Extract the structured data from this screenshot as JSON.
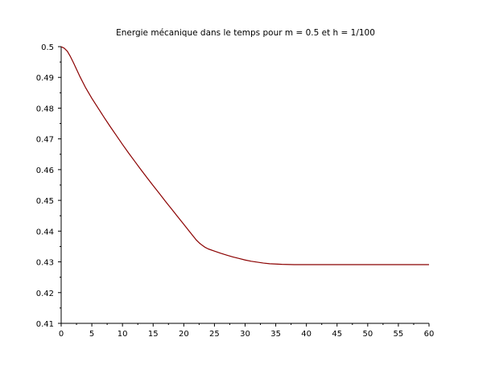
{
  "chart_data": {
    "type": "line",
    "title": "Energie mécanique dans le temps pour m = 0.5 et h = 1/100",
    "xlabel": "",
    "ylabel": "",
    "xlim": [
      0,
      60
    ],
    "ylim": [
      0.41,
      0.5
    ],
    "grid": false,
    "xticks": [
      0,
      5,
      10,
      15,
      20,
      25,
      30,
      35,
      40,
      45,
      50,
      55,
      60
    ],
    "yticks": [
      0.41,
      0.42,
      0.43,
      0.44,
      0.45,
      0.46,
      0.47,
      0.48,
      0.49,
      0.5
    ],
    "xtick_labels": [
      "0",
      "5",
      "10",
      "15",
      "20",
      "25",
      "30",
      "35",
      "40",
      "45",
      "50",
      "55",
      "60"
    ],
    "ytick_labels": [
      "0.41",
      "0.42",
      "0.43",
      "0.44",
      "0.45",
      "0.46",
      "0.47",
      "0.48",
      "0.49",
      "0.5"
    ],
    "series": [
      {
        "color": "#8b0000",
        "x": [
          0,
          0.5,
          1,
          1.5,
          2,
          3,
          4,
          5,
          6,
          7,
          8,
          9,
          10,
          11,
          12,
          13,
          14,
          15,
          16,
          17,
          18,
          19,
          20,
          21,
          22,
          22.5,
          23,
          23.5,
          24,
          25,
          26,
          27,
          28,
          29,
          30,
          31,
          32,
          33,
          34,
          35,
          36,
          38,
          40,
          45,
          50,
          55,
          60
        ],
        "y": [
          0.5,
          0.4995,
          0.4985,
          0.4968,
          0.4948,
          0.4905,
          0.4866,
          0.4832,
          0.4801,
          0.477,
          0.474,
          0.4711,
          0.4682,
          0.4654,
          0.4627,
          0.46,
          0.4574,
          0.4548,
          0.4523,
          0.4497,
          0.4472,
          0.4447,
          0.4422,
          0.4397,
          0.4372,
          0.4362,
          0.4354,
          0.4347,
          0.4342,
          0.4335,
          0.4328,
          0.4322,
          0.4316,
          0.4311,
          0.4306,
          0.4302,
          0.4299,
          0.4296,
          0.4294,
          0.4293,
          0.4292,
          0.4291,
          0.4291,
          0.4291,
          0.4291,
          0.4291,
          0.4291
        ]
      }
    ]
  }
}
